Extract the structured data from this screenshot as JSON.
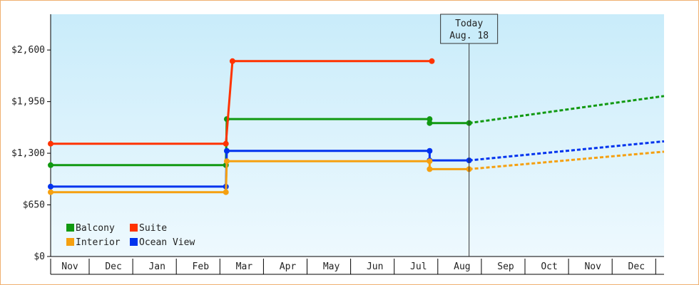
{
  "chart_data": {
    "type": "line",
    "step": true,
    "x_labels": [
      "Nov",
      "Dec",
      "Jan",
      "Feb",
      "Mar",
      "Apr",
      "May",
      "Jun",
      "Jul",
      "Aug",
      "Sep",
      "Oct",
      "Nov",
      "Dec"
    ],
    "y_ticks": [
      {
        "value": 0,
        "label": "$0"
      },
      {
        "value": 650,
        "label": "$650"
      },
      {
        "value": 1300,
        "label": "$1,300"
      },
      {
        "value": 1950,
        "label": "$1,950"
      },
      {
        "value": 2600,
        "label": "$2,600"
      }
    ],
    "ylim": [
      0,
      3050
    ],
    "today": {
      "line1": "Today",
      "line2": "Aug. 18",
      "x": 9.55
    },
    "series": [
      {
        "name": "Suite",
        "color": "#ff3300",
        "points": [
          [
            0,
            1420
          ],
          [
            4,
            1420
          ],
          [
            4.15,
            2460
          ],
          [
            8.7,
            2460
          ]
        ],
        "projection": []
      },
      {
        "name": "Balcony",
        "color": "#119911",
        "points": [
          [
            0,
            1150
          ],
          [
            4,
            1150
          ],
          [
            4.02,
            1730
          ],
          [
            8.65,
            1730
          ],
          [
            8.65,
            1680
          ],
          [
            9.55,
            1680
          ]
        ],
        "projection": [
          [
            9.55,
            1680
          ],
          [
            14,
            2020
          ]
        ]
      },
      {
        "name": "Ocean View",
        "color": "#0033ee",
        "points": [
          [
            0,
            880
          ],
          [
            4,
            880
          ],
          [
            4.02,
            1330
          ],
          [
            8.65,
            1330
          ],
          [
            8.65,
            1210
          ],
          [
            9.55,
            1210
          ]
        ],
        "projection": [
          [
            9.55,
            1210
          ],
          [
            14,
            1450
          ]
        ]
      },
      {
        "name": "Interior",
        "color": "#f5a010",
        "points": [
          [
            0,
            810
          ],
          [
            4,
            810
          ],
          [
            4.02,
            1200
          ],
          [
            8.65,
            1200
          ],
          [
            8.65,
            1100
          ],
          [
            9.55,
            1100
          ]
        ],
        "projection": [
          [
            9.55,
            1100
          ],
          [
            14,
            1320
          ]
        ]
      }
    ],
    "legend": [
      {
        "name": "Balcony",
        "color": "#119911"
      },
      {
        "name": "Suite",
        "color": "#ff3300"
      },
      {
        "name": "Interior",
        "color": "#f5a010"
      },
      {
        "name": "Ocean View",
        "color": "#0033ee"
      }
    ],
    "legend_position": "bottom-left",
    "grid": false
  }
}
